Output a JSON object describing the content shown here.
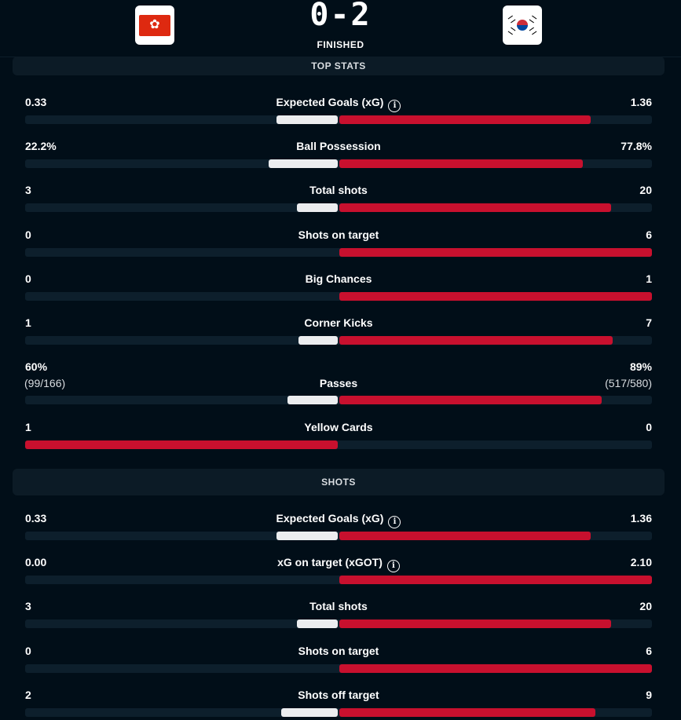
{
  "match": {
    "score": "0-2",
    "status": "FINISHED",
    "home_flag_icon": "hong-kong-flag-icon",
    "away_flag_icon": "south-korea-flag-icon"
  },
  "colors": {
    "home": "#ecedef",
    "away": "#c8102e",
    "track": "#0d1f2c",
    "background": "#010e18"
  },
  "sections": [
    {
      "title": "TOP STATS",
      "stats": [
        {
          "label": "Expected Goals (xG)",
          "home": "0.33",
          "away": "1.36",
          "home_value": 0.33,
          "away_value": 1.36,
          "info": true
        },
        {
          "label": "Ball Possession",
          "home": "22.2%",
          "away": "77.8%",
          "home_value": 22.2,
          "away_value": 77.8
        },
        {
          "label": "Total shots",
          "home": "3",
          "away": "20",
          "home_value": 3,
          "away_value": 20
        },
        {
          "label": "Shots on target",
          "home": "0",
          "away": "6",
          "home_value": 0,
          "away_value": 6
        },
        {
          "label": "Big Chances",
          "home": "0",
          "away": "1",
          "home_value": 0,
          "away_value": 1
        },
        {
          "label": "Corner Kicks",
          "home": "1",
          "away": "7",
          "home_value": 1,
          "away_value": 7
        },
        {
          "label": "Passes",
          "home": "60%",
          "away": "89%",
          "home_sub": "(99/166)",
          "away_sub": "(517/580)",
          "home_value": 99,
          "away_value": 517
        },
        {
          "label": "Yellow Cards",
          "home": "1",
          "away": "0",
          "home_value": 1,
          "away_value": 0
        }
      ]
    },
    {
      "title": "SHOTS",
      "stats": [
        {
          "label": "Expected Goals (xG)",
          "home": "0.33",
          "away": "1.36",
          "home_value": 0.33,
          "away_value": 1.36,
          "info": true
        },
        {
          "label": "xG on target (xGOT)",
          "home": "0.00",
          "away": "2.10",
          "home_value": 0.0,
          "away_value": 2.1,
          "info": true
        },
        {
          "label": "Total shots",
          "home": "3",
          "away": "20",
          "home_value": 3,
          "away_value": 20
        },
        {
          "label": "Shots on target",
          "home": "0",
          "away": "6",
          "home_value": 0,
          "away_value": 6
        },
        {
          "label": "Shots off target",
          "home": "2",
          "away": "9",
          "home_value": 2,
          "away_value": 9
        }
      ]
    }
  ]
}
